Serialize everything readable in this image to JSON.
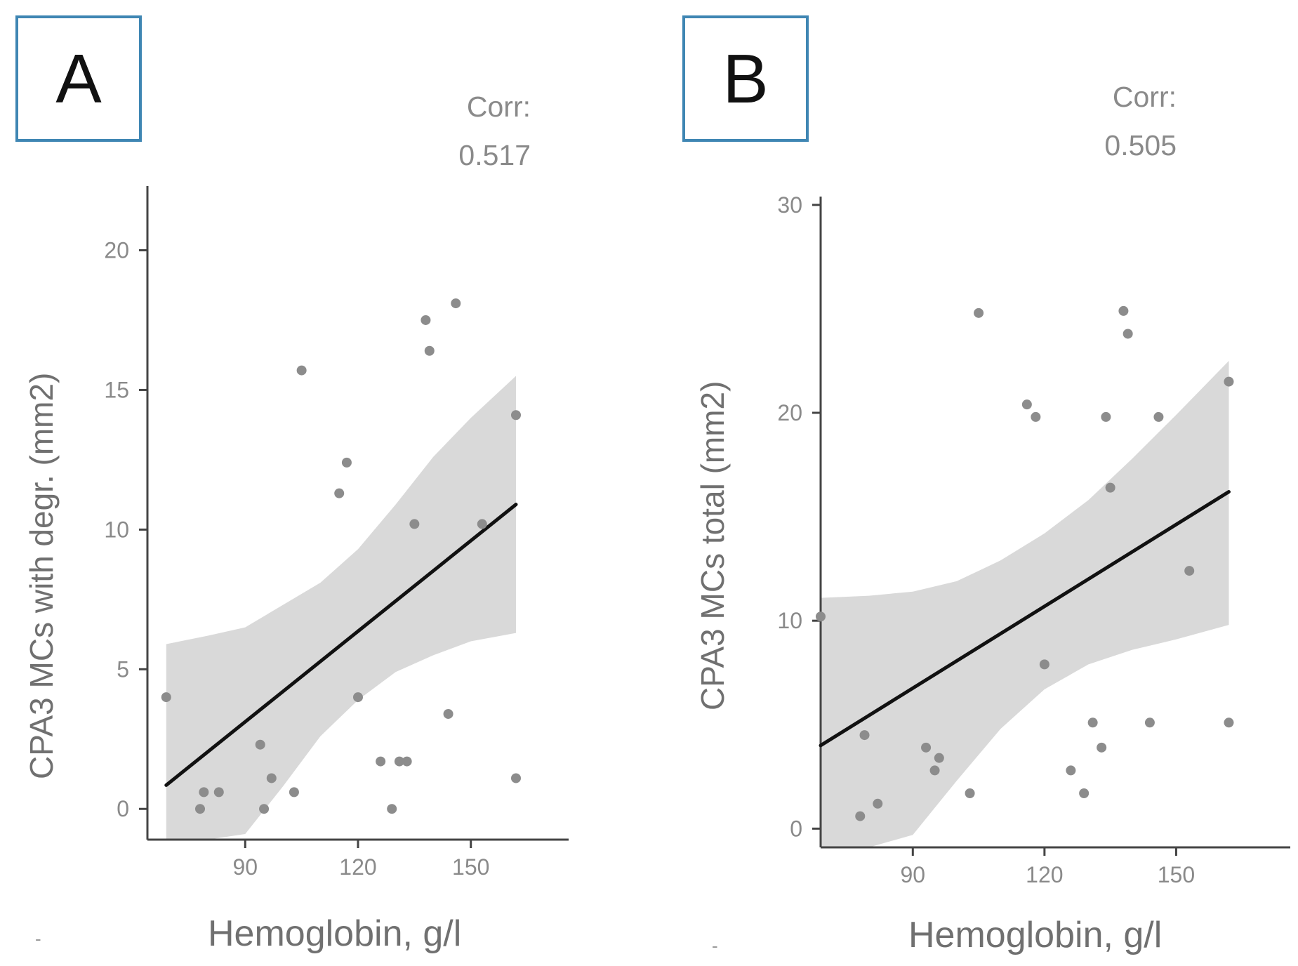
{
  "chart_data": [
    {
      "type": "scatter",
      "panel_label": "A",
      "corr_label": "Corr:",
      "corr_value": "0.517",
      "xlabel": "Hemoglobin, g/l",
      "ylabel": "CPA3 MCs with degr. (mm2)",
      "xlim": [
        64,
        176
      ],
      "ylim": [
        -1.1,
        22.3
      ],
      "x_ticks": [
        90,
        120,
        150
      ],
      "y_ticks": [
        0,
        5,
        10,
        15,
        20
      ],
      "points": [
        {
          "x": 69,
          "y": 4.0
        },
        {
          "x": 78,
          "y": 0.0
        },
        {
          "x": 79,
          "y": 0.6
        },
        {
          "x": 83,
          "y": 0.6
        },
        {
          "x": 94,
          "y": 2.3
        },
        {
          "x": 95,
          "y": 0.0
        },
        {
          "x": 97,
          "y": 1.1
        },
        {
          "x": 103,
          "y": 0.6
        },
        {
          "x": 105,
          "y": 15.7
        },
        {
          "x": 115,
          "y": 11.3
        },
        {
          "x": 117,
          "y": 12.4
        },
        {
          "x": 120,
          "y": 4.0
        },
        {
          "x": 126,
          "y": 1.7
        },
        {
          "x": 129,
          "y": 0.0
        },
        {
          "x": 131,
          "y": 1.7
        },
        {
          "x": 133,
          "y": 1.7
        },
        {
          "x": 135,
          "y": 10.2
        },
        {
          "x": 138,
          "y": 17.5
        },
        {
          "x": 139,
          "y": 16.4
        },
        {
          "x": 144,
          "y": 3.4
        },
        {
          "x": 146,
          "y": 18.1
        },
        {
          "x": 153,
          "y": 10.2
        },
        {
          "x": 162,
          "y": 14.1
        },
        {
          "x": 162,
          "y": 1.1
        }
      ],
      "fit_line": [
        {
          "x": 69,
          "y": 0.85
        },
        {
          "x": 162,
          "y": 10.9
        }
      ],
      "ci_band": {
        "x": [
          69,
          80,
          90,
          100,
          110,
          120,
          130,
          140,
          150,
          162
        ],
        "upper": [
          5.9,
          6.2,
          6.5,
          7.3,
          8.1,
          9.3,
          10.9,
          12.6,
          14.0,
          15.5
        ],
        "lower": [
          -1.1,
          -1.1,
          -0.9,
          0.8,
          2.6,
          3.9,
          4.9,
          5.5,
          6.0,
          6.3
        ]
      }
    },
    {
      "type": "scatter",
      "panel_label": "B",
      "corr_label": "Corr:",
      "corr_value": "0.505",
      "xlabel": "Hemoglobin, g/l",
      "ylabel": "CPA3 MCs total (mm2)",
      "xlim": [
        69,
        176
      ],
      "ylim": [
        -0.9,
        30.4
      ],
      "x_ticks": [
        90,
        120,
        150
      ],
      "y_ticks": [
        0,
        10,
        20,
        30
      ],
      "points": [
        {
          "x": 69,
          "y": 10.2
        },
        {
          "x": 78,
          "y": 0.6
        },
        {
          "x": 79,
          "y": 4.5
        },
        {
          "x": 82,
          "y": 1.2
        },
        {
          "x": 93,
          "y": 3.9
        },
        {
          "x": 95,
          "y": 2.8
        },
        {
          "x": 96,
          "y": 3.4
        },
        {
          "x": 103,
          "y": 1.7
        },
        {
          "x": 105,
          "y": 24.8
        },
        {
          "x": 116,
          "y": 20.4
        },
        {
          "x": 118,
          "y": 19.8
        },
        {
          "x": 120,
          "y": 7.9
        },
        {
          "x": 126,
          "y": 2.8
        },
        {
          "x": 129,
          "y": 1.7
        },
        {
          "x": 131,
          "y": 5.1
        },
        {
          "x": 133,
          "y": 3.9
        },
        {
          "x": 134,
          "y": 19.8
        },
        {
          "x": 135,
          "y": 16.4
        },
        {
          "x": 138,
          "y": 24.9
        },
        {
          "x": 139,
          "y": 23.8
        },
        {
          "x": 144,
          "y": 5.1
        },
        {
          "x": 146,
          "y": 19.8
        },
        {
          "x": 153,
          "y": 12.4
        },
        {
          "x": 162,
          "y": 21.5
        },
        {
          "x": 162,
          "y": 5.1
        }
      ],
      "fit_line": [
        {
          "x": 69,
          "y": 4.0
        },
        {
          "x": 162,
          "y": 16.2
        }
      ],
      "ci_band": {
        "x": [
          69,
          80,
          90,
          100,
          110,
          120,
          130,
          140,
          150,
          162
        ],
        "upper": [
          11.1,
          11.2,
          11.4,
          11.9,
          12.9,
          14.2,
          15.8,
          17.8,
          19.9,
          22.5
        ],
        "lower": [
          -0.9,
          -0.9,
          -0.3,
          2.3,
          4.8,
          6.7,
          7.9,
          8.6,
          9.1,
          9.8
        ]
      }
    }
  ],
  "footer_marks": [
    "-",
    "-"
  ]
}
